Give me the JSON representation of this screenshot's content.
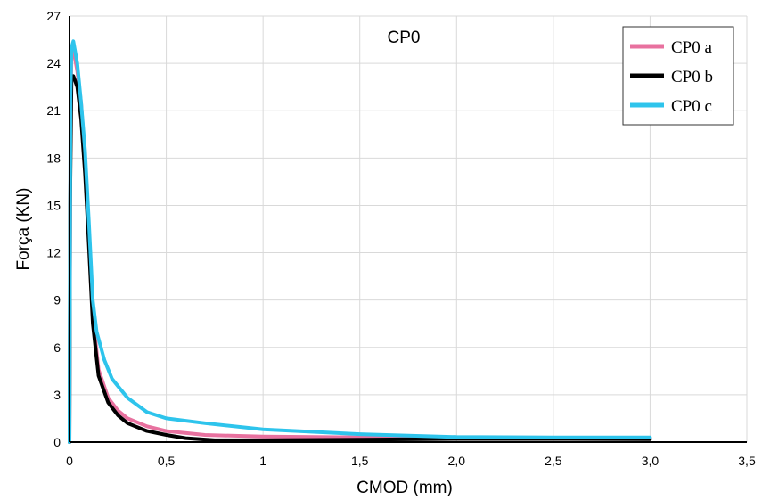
{
  "chart_data": {
    "type": "line",
    "title": "CP0",
    "xlabel": "CMOD (mm)",
    "ylabel": "Força (KN)",
    "xlim": [
      0,
      3.5
    ],
    "ylim": [
      0,
      27
    ],
    "x_ticks": [
      0,
      0.5,
      1,
      1.5,
      2,
      2.5,
      3,
      3.5
    ],
    "x_tick_labels": [
      "0",
      "0,5",
      "1",
      "1,5",
      "2,0",
      "2,5",
      "3,0",
      "3,5"
    ],
    "y_ticks": [
      0,
      3,
      6,
      9,
      12,
      15,
      18,
      21,
      24,
      27
    ],
    "y_tick_labels": [
      "0",
      "3",
      "6",
      "9",
      "12",
      "15",
      "18",
      "21",
      "24",
      "27"
    ],
    "grid": true,
    "legend_position": "top-right",
    "series": [
      {
        "name": "CP0 a",
        "color": "#e8719f",
        "points": [
          [
            0,
            0
          ],
          [
            0.005,
            20
          ],
          [
            0.01,
            24.5
          ],
          [
            0.02,
            24.9
          ],
          [
            0.04,
            23.5
          ],
          [
            0.06,
            21.5
          ],
          [
            0.08,
            18
          ],
          [
            0.1,
            13
          ],
          [
            0.12,
            8
          ],
          [
            0.15,
            4.6
          ],
          [
            0.2,
            2.8
          ],
          [
            0.25,
            2.0
          ],
          [
            0.3,
            1.5
          ],
          [
            0.4,
            1.0
          ],
          [
            0.5,
            0.7
          ],
          [
            0.7,
            0.45
          ],
          [
            1,
            0.35
          ],
          [
            1.5,
            0.3
          ],
          [
            2,
            0.3
          ],
          [
            2.5,
            0.28
          ],
          [
            3,
            0.25
          ]
        ]
      },
      {
        "name": "CP0 b",
        "color": "#000000",
        "points": [
          [
            0,
            0
          ],
          [
            0.003,
            15
          ],
          [
            0.01,
            23
          ],
          [
            0.02,
            23.2
          ],
          [
            0.04,
            22.5
          ],
          [
            0.06,
            20.5
          ],
          [
            0.08,
            17
          ],
          [
            0.1,
            12.5
          ],
          [
            0.12,
            7.5
          ],
          [
            0.15,
            4.2
          ],
          [
            0.2,
            2.5
          ],
          [
            0.25,
            1.7
          ],
          [
            0.3,
            1.2
          ],
          [
            0.4,
            0.7
          ],
          [
            0.5,
            0.45
          ],
          [
            0.6,
            0.25
          ],
          [
            0.75,
            0.12
          ],
          [
            1,
            0.12
          ],
          [
            1.5,
            0.15
          ],
          [
            2,
            0.2
          ],
          [
            2.5,
            0.2
          ],
          [
            3,
            0.18
          ]
        ]
      },
      {
        "name": "CP0 c",
        "color": "#2ec4ec",
        "points": [
          [
            0,
            0
          ],
          [
            0.005,
            22
          ],
          [
            0.01,
            25
          ],
          [
            0.02,
            25.4
          ],
          [
            0.04,
            24
          ],
          [
            0.06,
            21.5
          ],
          [
            0.08,
            18.5
          ],
          [
            0.1,
            14
          ],
          [
            0.12,
            9
          ],
          [
            0.14,
            7
          ],
          [
            0.18,
            5.2
          ],
          [
            0.22,
            4
          ],
          [
            0.3,
            2.8
          ],
          [
            0.4,
            1.9
          ],
          [
            0.5,
            1.5
          ],
          [
            0.7,
            1.2
          ],
          [
            1,
            0.8
          ],
          [
            1.5,
            0.5
          ],
          [
            2,
            0.32
          ],
          [
            2.5,
            0.3
          ],
          [
            3,
            0.3
          ]
        ]
      }
    ]
  }
}
